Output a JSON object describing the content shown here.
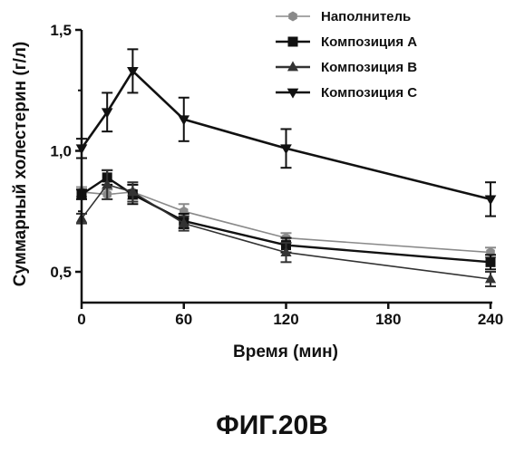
{
  "chart_data": {
    "type": "line",
    "xlabel": "Время (мин)",
    "ylabel": "Суммарный холестерин (г/л)",
    "x": [
      0,
      15,
      30,
      60,
      120,
      240
    ],
    "xticks": [
      0,
      60,
      120,
      180,
      240
    ],
    "xtick_labels": [
      "0",
      "60",
      "120",
      "180",
      "240"
    ],
    "yticks": [
      0.5,
      1.0,
      1.5
    ],
    "ytick_labels": [
      "0,5",
      "1,0",
      "1,5"
    ],
    "xlim": [
      0,
      240
    ],
    "ylim": [
      0.4,
      1.5
    ],
    "grid": false,
    "legend_position": "top-right",
    "series": [
      {
        "name": "Наполнитель",
        "marker": "hexagon",
        "color": "#8a8a8a",
        "values": [
          0.83,
          0.82,
          0.83,
          0.75,
          0.64,
          0.58
        ],
        "errors": [
          0.02,
          0.02,
          0.03,
          0.03,
          0.02,
          0.02
        ]
      },
      {
        "name": "Композиция A",
        "marker": "square",
        "color": "#111111",
        "values": [
          0.82,
          0.89,
          0.82,
          0.71,
          0.61,
          0.54
        ],
        "errors": [
          0.02,
          0.03,
          0.04,
          0.03,
          0.03,
          0.03
        ]
      },
      {
        "name": "Композиция B",
        "marker": "triangle-up",
        "color": "#333333",
        "values": [
          0.72,
          0.86,
          0.83,
          0.7,
          0.58,
          0.47
        ],
        "errors": [
          0.02,
          0.06,
          0.04,
          0.03,
          0.04,
          0.03
        ]
      },
      {
        "name": "Композиция C",
        "marker": "triangle-down",
        "color": "#111111",
        "values": [
          1.01,
          1.16,
          1.33,
          1.13,
          1.01,
          0.8
        ],
        "errors": [
          0.04,
          0.08,
          0.09,
          0.09,
          0.08,
          0.07
        ]
      }
    ]
  },
  "caption": "ФИГ.20B"
}
